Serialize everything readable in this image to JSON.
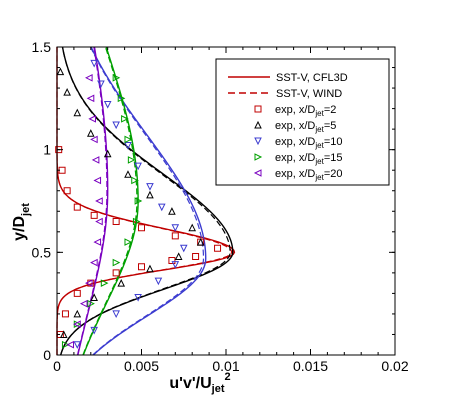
{
  "chart_data": {
    "type": "line",
    "xlabel": "u'v'/U",
    "xlabel_sub": "jet",
    "xlabel_sup": "2",
    "ylabel": "y/D",
    "ylabel_sub": "jet",
    "xlim": [
      0,
      0.02
    ],
    "ylim": [
      0,
      1.5
    ],
    "xticks": [
      0,
      0.005,
      0.01,
      0.015,
      0.02
    ],
    "xtick_labels": [
      "0",
      "0.005",
      "0.01",
      "0.015",
      "0.02"
    ],
    "yticks": [
      0,
      0.5,
      1,
      1.5
    ],
    "ytick_labels": [
      "0",
      "0.5",
      "1",
      "1.5"
    ],
    "grid": false,
    "legend_position": "top-right",
    "legend": [
      {
        "text": "SST-V, CFL3D",
        "kind": "solid-line"
      },
      {
        "text": "SST-V, WIND",
        "kind": "dashed-line"
      },
      {
        "text": "exp, x/D",
        "sub": "jet",
        "suffix": "=2",
        "kind": "marker",
        "marker": "square"
      },
      {
        "text": "exp, x/D",
        "sub": "jet",
        "suffix": "=5",
        "kind": "marker",
        "marker": "triangle-up"
      },
      {
        "text": "exp, x/D",
        "sub": "jet",
        "suffix": "=10",
        "kind": "marker",
        "marker": "triangle-down"
      },
      {
        "text": "exp, x/D",
        "sub": "jet",
        "suffix": "=15",
        "kind": "marker",
        "marker": "triangle-right"
      },
      {
        "text": "exp, x/D",
        "sub": "jet",
        "suffix": "=20",
        "kind": "marker",
        "marker": "triangle-left"
      }
    ],
    "series": [
      {
        "station": 2,
        "color": "#c00000",
        "marker": "square",
        "profile": {
          "peak": 0.0105,
          "y_peak": 0.5,
          "lower_width": 0.085,
          "upper_width": 0.115,
          "lower_wall": 0.0,
          "outer": 0.0
        },
        "exp_x": [
          0.0002,
          0.0005,
          0.0012,
          0.002,
          0.0035,
          0.005,
          0.0068,
          0.0082,
          0.0095,
          0.0085,
          0.007,
          0.005,
          0.0035,
          0.0022,
          0.0012,
          0.0006,
          0.0003,
          0.0001
        ],
        "exp_y": [
          0.1,
          0.2,
          0.3,
          0.35,
          0.4,
          0.43,
          0.46,
          0.48,
          0.52,
          0.55,
          0.58,
          0.62,
          0.65,
          0.68,
          0.72,
          0.8,
          0.9,
          1.0
        ]
      },
      {
        "station": 5,
        "color": "#000000",
        "marker": "triangle-up",
        "profile": {
          "peak": 0.0104,
          "y_peak": 0.5,
          "lower_width": 0.18,
          "upper_width": 0.38,
          "lower_wall": 0.0,
          "outer": 0.0
        },
        "exp_x": [
          0.0004,
          0.0012,
          0.0022,
          0.0038,
          0.0055,
          0.0072,
          0.0085,
          0.008,
          0.0068,
          0.0055,
          0.0042,
          0.003,
          0.002,
          0.0012,
          0.0006,
          0.0002
        ],
        "exp_y": [
          0.1,
          0.2,
          0.28,
          0.35,
          0.42,
          0.48,
          0.55,
          0.62,
          0.7,
          0.78,
          0.88,
          0.98,
          1.08,
          1.18,
          1.28,
          1.38
        ]
      },
      {
        "station": 10,
        "color": "#3c3cd0",
        "marker": "triangle-down",
        "profile": {
          "peak": 0.0088,
          "y_peak": 0.47,
          "lower_width": 0.28,
          "upper_width": 0.6,
          "lower_wall": 0.0,
          "outer": 0.0
        },
        "exp_x": [
          0.0012,
          0.0022,
          0.0035,
          0.0048,
          0.006,
          0.007,
          0.0075,
          0.007,
          0.0062,
          0.0055,
          0.0048,
          0.0042,
          0.0035,
          0.003,
          0.0026,
          0.0022
        ],
        "exp_y": [
          0.05,
          0.12,
          0.2,
          0.28,
          0.36,
          0.44,
          0.52,
          0.62,
          0.72,
          0.82,
          0.92,
          1.02,
          1.12,
          1.22,
          1.32,
          1.42
        ]
      },
      {
        "station": 15,
        "color": "#00a000",
        "marker": "triangle-right",
        "profile": {
          "peak": 0.0048,
          "y_peak": 0.75,
          "lower_width": 0.5,
          "upper_width": 0.75,
          "lower_wall": 0.0,
          "outer": 0.0
        },
        "exp_x": [
          0.0005,
          0.0012,
          0.002,
          0.0028,
          0.0035,
          0.0042,
          0.0047,
          0.0048,
          0.0046,
          0.0044,
          0.0042,
          0.004,
          0.0038,
          0.0035
        ],
        "exp_y": [
          0.05,
          0.15,
          0.25,
          0.35,
          0.45,
          0.55,
          0.65,
          0.75,
          0.85,
          0.95,
          1.05,
          1.15,
          1.25,
          1.35
        ]
      },
      {
        "station": 20,
        "color": "#7a00c0",
        "marker": "triangle-left",
        "profile": {
          "peak": 0.003,
          "y_peak": 0.8,
          "lower_width": 0.6,
          "upper_width": 0.9,
          "lower_wall": 0.0,
          "outer": 0.0
        },
        "exp_x": [
          0.0008,
          0.0012,
          0.0016,
          0.0019,
          0.0022,
          0.0024,
          0.0025,
          0.0025,
          0.0024,
          0.0023,
          0.0022,
          0.0021,
          0.002,
          0.0019
        ],
        "exp_y": [
          0.05,
          0.15,
          0.25,
          0.35,
          0.45,
          0.55,
          0.65,
          0.75,
          0.85,
          0.95,
          1.05,
          1.15,
          1.25,
          1.35
        ]
      }
    ]
  }
}
